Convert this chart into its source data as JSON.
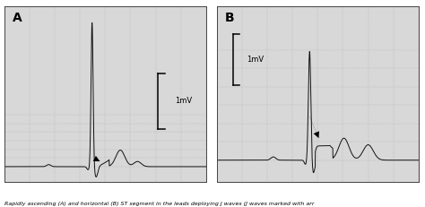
{
  "caption": "Rapidly ascending (A) and horizontal (B) ST segment in the leads deploying J waves (J waves marked with arr",
  "panel_A_label": "A",
  "panel_B_label": "B",
  "scale_label": "1mV",
  "panel_bg": "#d8d8d8",
  "ecg_color": "#111111",
  "grid_color": "#999999",
  "fig_width": 4.74,
  "fig_height": 2.31,
  "dpi": 100
}
